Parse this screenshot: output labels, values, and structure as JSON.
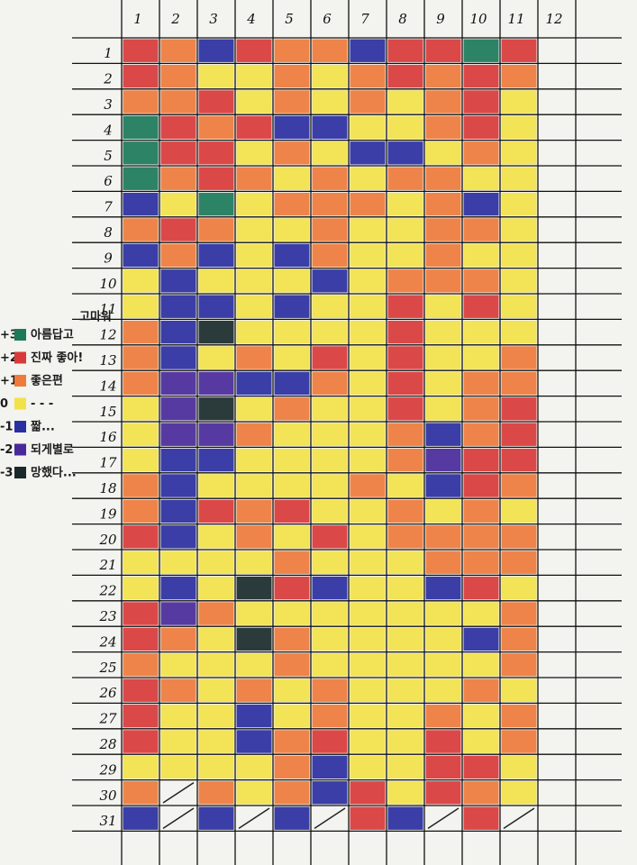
{
  "columns": [
    "1",
    "2",
    "3",
    "4",
    "5",
    "6",
    "7",
    "8",
    "9",
    "10",
    "11",
    "12"
  ],
  "rows": [
    "1",
    "2",
    "3",
    "4",
    "5",
    "6",
    "7",
    "8",
    "9",
    "10",
    "11",
    "12",
    "13",
    "14",
    "15",
    "16",
    "17",
    "18",
    "19",
    "20",
    "21",
    "22",
    "23",
    "24",
    "25",
    "26",
    "27",
    "28",
    "29",
    "30",
    "31"
  ],
  "legend": {
    "note": "고마워",
    "items": [
      {
        "score_label": "+3",
        "value": 3,
        "label": "아름답고",
        "color": "#1c7a5a"
      },
      {
        "score_label": "+2",
        "value": 2,
        "label": "진짜 좋아!",
        "color": "#d9393a"
      },
      {
        "score_label": "+1",
        "value": 1,
        "label": "좋은편",
        "color": "#ee7b3c"
      },
      {
        "score_label": "0",
        "value": 0,
        "label": "- - -",
        "color": "#f2e24a"
      },
      {
        "score_label": "-1",
        "value": -1,
        "label": "짧...",
        "color": "#2a2fa0"
      },
      {
        "score_label": "-2",
        "value": -2,
        "label": "되게별로",
        "color": "#4a2a9a"
      },
      {
        "score_label": "-3",
        "value": -3,
        "label": "망했다...",
        "color": "#1a2a2a"
      }
    ]
  },
  "cells": [
    [
      2,
      1,
      -1,
      2,
      1,
      1,
      -1,
      2,
      2,
      3,
      2
    ],
    [
      2,
      1,
      0,
      0,
      1,
      0,
      1,
      2,
      1,
      2,
      1
    ],
    [
      1,
      1,
      2,
      0,
      1,
      0,
      1,
      0,
      1,
      2,
      0
    ],
    [
      3,
      2,
      1,
      2,
      -1,
      -1,
      0,
      0,
      1,
      2,
      0
    ],
    [
      3,
      2,
      2,
      0,
      1,
      0,
      -1,
      -1,
      0,
      1,
      0
    ],
    [
      3,
      1,
      2,
      1,
      0,
      1,
      0,
      1,
      1,
      0,
      0
    ],
    [
      -1,
      0,
      3,
      0,
      1,
      1,
      1,
      0,
      1,
      -1,
      0
    ],
    [
      1,
      2,
      1,
      0,
      0,
      1,
      0,
      0,
      1,
      1,
      0
    ],
    [
      -1,
      1,
      -1,
      0,
      -1,
      1,
      0,
      0,
      1,
      0,
      0
    ],
    [
      0,
      -1,
      0,
      0,
      0,
      -1,
      0,
      1,
      1,
      1,
      0
    ],
    [
      0,
      -1,
      -1,
      0,
      -1,
      0,
      0,
      2,
      0,
      2,
      0
    ],
    [
      1,
      -1,
      -3,
      0,
      0,
      0,
      0,
      2,
      0,
      0,
      0
    ],
    [
      1,
      -1,
      0,
      1,
      0,
      2,
      0,
      2,
      0,
      0,
      1
    ],
    [
      1,
      -2,
      -2,
      -1,
      -1,
      1,
      0,
      2,
      0,
      1,
      1
    ],
    [
      0,
      -2,
      -3,
      0,
      1,
      0,
      0,
      2,
      0,
      1,
      2
    ],
    [
      0,
      -2,
      -2,
      1,
      0,
      0,
      0,
      1,
      -1,
      1,
      2
    ],
    [
      0,
      -1,
      -1,
      0,
      0,
      0,
      0,
      1,
      -2,
      2,
      2
    ],
    [
      1,
      -1,
      0,
      0,
      0,
      0,
      1,
      0,
      -1,
      2,
      1
    ],
    [
      1,
      -1,
      2,
      1,
      2,
      0,
      0,
      1,
      0,
      1,
      0
    ],
    [
      2,
      -1,
      0,
      1,
      0,
      2,
      0,
      1,
      1,
      1,
      1
    ],
    [
      0,
      0,
      0,
      0,
      1,
      0,
      0,
      0,
      1,
      1,
      1
    ],
    [
      0,
      -1,
      0,
      -3,
      2,
      -1,
      0,
      0,
      -1,
      2,
      0
    ],
    [
      2,
      -2,
      1,
      0,
      0,
      0,
      0,
      0,
      0,
      0,
      1
    ],
    [
      2,
      1,
      0,
      -3,
      1,
      0,
      0,
      0,
      0,
      -1,
      1
    ],
    [
      1,
      0,
      0,
      0,
      1,
      0,
      0,
      0,
      0,
      0,
      1
    ],
    [
      2,
      1,
      0,
      1,
      0,
      1,
      0,
      0,
      0,
      1,
      0
    ],
    [
      2,
      0,
      0,
      -1,
      0,
      1,
      0,
      0,
      1,
      0,
      1
    ],
    [
      2,
      0,
      0,
      -1,
      1,
      2,
      0,
      0,
      2,
      0,
      1
    ],
    [
      0,
      0,
      0,
      0,
      1,
      -1,
      0,
      0,
      2,
      2,
      0
    ],
    [
      1,
      null,
      1,
      0,
      1,
      -1,
      2,
      0,
      2,
      1,
      0
    ],
    [
      -1,
      null,
      -1,
      null,
      -1,
      null,
      2,
      -1,
      null,
      2,
      null
    ]
  ]
}
